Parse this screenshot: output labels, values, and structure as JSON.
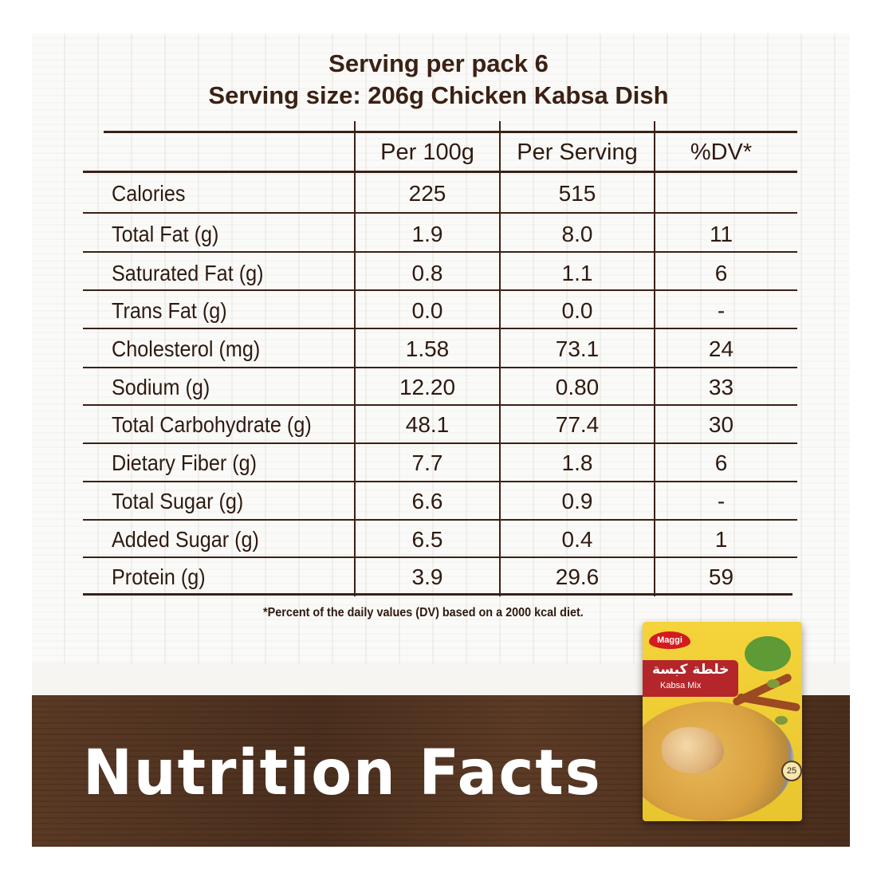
{
  "header": {
    "line1": "Serving per pack 6",
    "line2": "Serving size: 206g Chicken Kabsa Dish"
  },
  "table": {
    "columns": [
      "Per 100g",
      "Per Serving",
      "%DV*"
    ],
    "rows": [
      {
        "label": "Calories",
        "per100g": "225",
        "perServing": "515",
        "dv": ""
      },
      {
        "label": "Total Fat (g)",
        "per100g": "1.9",
        "perServing": "8.0",
        "dv": "11"
      },
      {
        "label": "Saturated Fat (g)",
        "per100g": "0.8",
        "perServing": "1.1",
        "dv": "6"
      },
      {
        "label": "Trans Fat (g)",
        "per100g": "0.0",
        "perServing": "0.0",
        "dv": "-"
      },
      {
        "label": "Cholesterol (mg)",
        "per100g": "1.58",
        "perServing": "73.1",
        "dv": "24"
      },
      {
        "label": "Sodium (g)",
        "per100g": "12.20",
        "perServing": "0.80",
        "dv": "33"
      },
      {
        "label": "Total Carbohydrate (g)",
        "per100g": "48.1",
        "perServing": "77.4",
        "dv": "30"
      },
      {
        "label": "Dietary Fiber (g)",
        "per100g": "7.7",
        "perServing": "1.8",
        "dv": "6"
      },
      {
        "label": "Total Sugar (g)",
        "per100g": "6.6",
        "perServing": "0.9",
        "dv": "-"
      },
      {
        "label": "Added Sugar (g)",
        "per100g": "6.5",
        "perServing": "0.4",
        "dv": "1"
      },
      {
        "label": "Protein (g)",
        "per100g": "3.9",
        "perServing": "29.6",
        "dv": "59"
      }
    ]
  },
  "footnote": "*Percent of the daily values (DV) based on a 2000 kcal diet.",
  "banner_title": "Nutrition Facts",
  "pack": {
    "brand": "Maggi",
    "arabic_name": "خلطة كبسة",
    "english_name": "Kabsa Mix",
    "time_badge": "25"
  },
  "colors": {
    "text_brown": "#3b2114",
    "wood": "#4b2f1e",
    "yellow": "#f0d21a",
    "maggi_red": "#d41a1f"
  }
}
